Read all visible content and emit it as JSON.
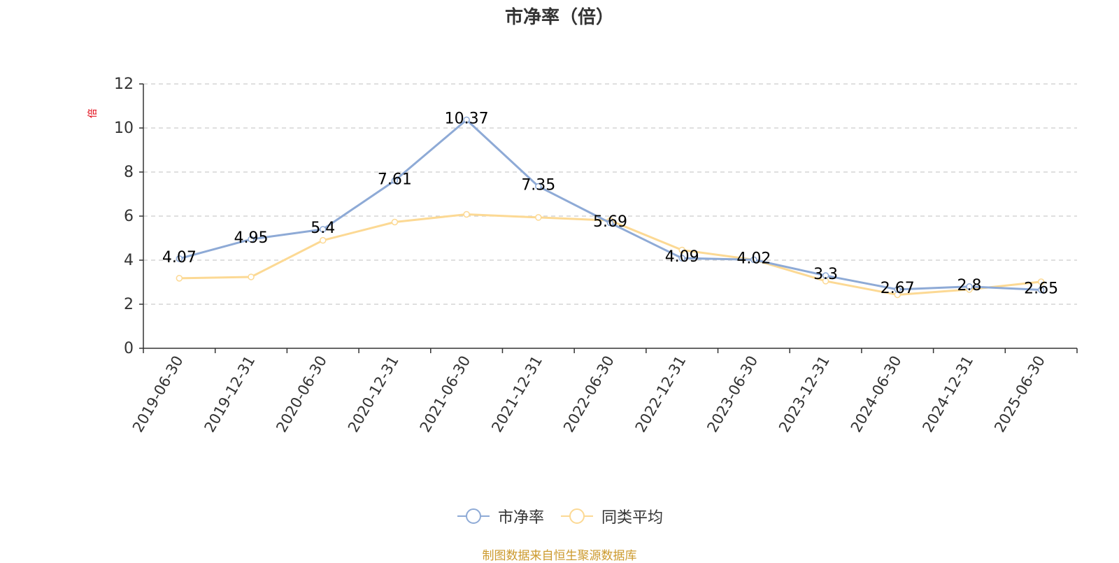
{
  "chart_data": {
    "type": "line",
    "title": "市净率（倍）",
    "ylabel": "倍",
    "xlabel": "",
    "ylim": [
      0,
      12
    ],
    "yticks": [
      0,
      2,
      4,
      6,
      8,
      10,
      12
    ],
    "grid": true,
    "legend_position": "bottom",
    "categories": [
      "2019-06-30",
      "2019-12-31",
      "2020-06-30",
      "2020-12-31",
      "2021-06-30",
      "2021-12-31",
      "2022-06-30",
      "2022-12-31",
      "2023-06-30",
      "2023-12-31",
      "2024-06-30",
      "2024-12-31",
      "2025-06-30"
    ],
    "series": [
      {
        "name": "市净率",
        "color": "#8eaad6",
        "values": [
          4.07,
          4.95,
          5.4,
          7.61,
          10.37,
          7.35,
          5.69,
          4.09,
          4.02,
          3.3,
          2.67,
          2.8,
          2.65
        ],
        "data_labels": true
      },
      {
        "name": "同类平均",
        "color": "#fcd994",
        "values": [
          3.18,
          3.24,
          4.9,
          5.73,
          6.08,
          5.94,
          5.8,
          4.46,
          4.02,
          3.05,
          2.43,
          2.67,
          3.02
        ],
        "data_labels": false
      }
    ]
  },
  "legend": {
    "items": [
      "市净率",
      "同类平均"
    ]
  },
  "source_note": "制图数据来自恒生聚源数据库",
  "colors": {
    "axis": "#333333",
    "grid": "#cccccc",
    "ylabel": "#e0000e",
    "source": "#cc9a2e"
  }
}
